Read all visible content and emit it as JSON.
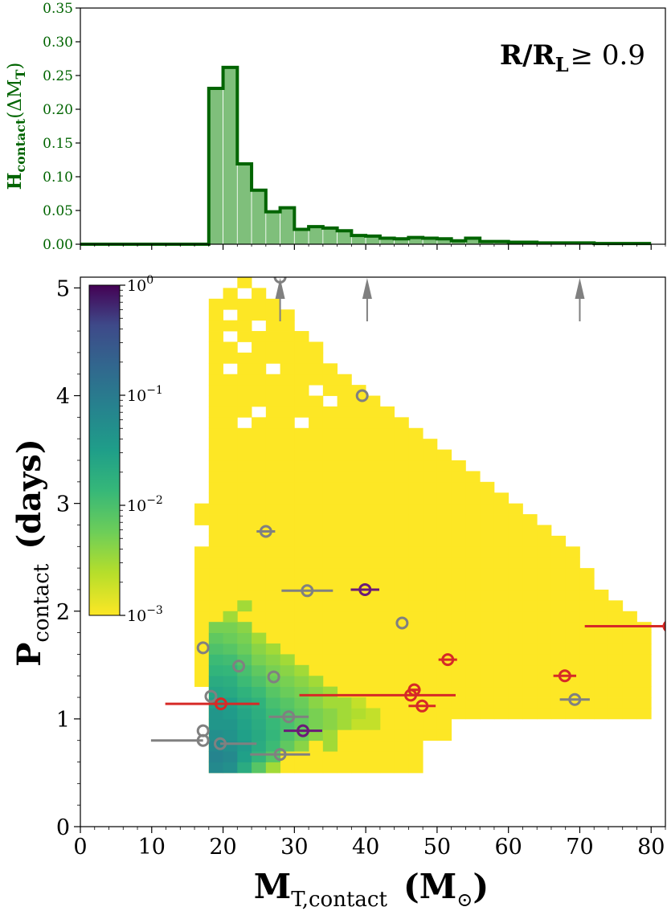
{
  "chart_data": [
    {
      "type": "bar",
      "panel": "histogram",
      "ylabel_main": "H",
      "ylabel_sub": "contact",
      "ylabel_tail": "(ΔM",
      "ylabel_tail_sub": "T",
      "ylabel_close": ")",
      "annotation_main": "R/R",
      "annotation_sub": "L",
      "annotation_tail": "≥ 0.9",
      "xlim": [
        0,
        82
      ],
      "ylim": [
        0,
        0.35
      ],
      "yticks": [
        "0.00",
        "0.05",
        "0.10",
        "0.15",
        "0.20",
        "0.25",
        "0.30",
        "0.35"
      ],
      "bin_width": 2,
      "bin_start": 0,
      "values": [
        0,
        0,
        0,
        0,
        0,
        0,
        0,
        0,
        0,
        0.231,
        0.262,
        0.119,
        0.08,
        0.048,
        0.054,
        0.022,
        0.026,
        0.024,
        0.02,
        0.013,
        0.012,
        0.009,
        0.008,
        0.01,
        0.009,
        0.008,
        0.005,
        0.009,
        0.004,
        0.004,
        0.003,
        0.003,
        0.002,
        0.002,
        0.002,
        0.002,
        0.001,
        0.001,
        0.001,
        0.001
      ],
      "fill_color": "#7fbf7b",
      "line_color": "#006400"
    },
    {
      "type": "heatmap",
      "panel": "main",
      "xlabel_main": "M",
      "xlabel_sub": "T,contact",
      "xlabel_unit": "(M",
      "xlabel_unit_sym": "⊙",
      "xlabel_close": ")",
      "ylabel_main": "P",
      "ylabel_sub": "contact",
      "ylabel_unit": "(days)",
      "xlim": [
        0,
        82
      ],
      "ylim": [
        0,
        5.1
      ],
      "xticks": [
        "0",
        "10",
        "20",
        "30",
        "40",
        "50",
        "60",
        "70",
        "80"
      ],
      "yticks": [
        "0",
        "1",
        "2",
        "3",
        "4",
        "5"
      ],
      "colorbar": {
        "scale": "log",
        "range": [
          0.001,
          1
        ],
        "ticks": [
          {
            "base": "10",
            "exp": "−3"
          },
          {
            "base": "10",
            "exp": "−2"
          },
          {
            "base": "10",
            "exp": "−1"
          },
          {
            "base": "10",
            "exp": "0"
          }
        ]
      },
      "bin_width_x": 2,
      "bin_height_y": 0.1,
      "yellow_region": {
        "bin_start_x": 18,
        "bin_end_x": 80,
        "p_min_start": 0.5,
        "p_max_by_mass": [
          [
            18,
            5.0
          ],
          [
            20,
            5.0
          ],
          [
            22,
            5.1
          ],
          [
            24,
            5.0
          ],
          [
            26,
            4.9
          ],
          [
            28,
            4.8
          ],
          [
            30,
            4.6
          ],
          [
            32,
            4.5
          ],
          [
            34,
            4.3
          ],
          [
            36,
            4.2
          ],
          [
            38,
            4.1
          ],
          [
            40,
            4.0
          ],
          [
            42,
            3.9
          ],
          [
            44,
            3.8
          ],
          [
            46,
            3.7
          ],
          [
            48,
            3.6
          ],
          [
            50,
            3.5
          ],
          [
            52,
            3.4
          ],
          [
            54,
            3.3
          ],
          [
            56,
            3.2
          ],
          [
            58,
            3.1
          ],
          [
            60,
            3.0
          ],
          [
            62,
            2.9
          ],
          [
            64,
            2.8
          ],
          [
            66,
            2.7
          ],
          [
            68,
            2.6
          ],
          [
            70,
            2.4
          ],
          [
            72,
            2.2
          ],
          [
            74,
            2.1
          ],
          [
            76,
            2.0
          ],
          [
            78,
            1.9
          ]
        ],
        "p_min_by_mass": [
          [
            44,
            0.5
          ],
          [
            48,
            0.8
          ],
          [
            52,
            1.0
          ],
          [
            60,
            1.0
          ]
        ]
      },
      "density_cells": [
        {
          "x": 18,
          "y": 0.5,
          "v": 0.06
        },
        {
          "x": 18,
          "y": 0.6,
          "v": 0.07
        },
        {
          "x": 18,
          "y": 0.7,
          "v": 0.06
        },
        {
          "x": 18,
          "y": 0.8,
          "v": 0.05
        },
        {
          "x": 18,
          "y": 0.9,
          "v": 0.04
        },
        {
          "x": 18,
          "y": 1.0,
          "v": 0.04
        },
        {
          "x": 18,
          "y": 1.1,
          "v": 0.03
        },
        {
          "x": 18,
          "y": 1.2,
          "v": 0.025
        },
        {
          "x": 18,
          "y": 1.3,
          "v": 0.02
        },
        {
          "x": 18,
          "y": 1.4,
          "v": 0.015
        },
        {
          "x": 18,
          "y": 1.5,
          "v": 0.012
        },
        {
          "x": 18,
          "y": 1.6,
          "v": 0.009
        },
        {
          "x": 18,
          "y": 1.7,
          "v": 0.007
        },
        {
          "x": 18,
          "y": 1.8,
          "v": 0.005
        },
        {
          "x": 20,
          "y": 0.5,
          "v": 0.05
        },
        {
          "x": 20,
          "y": 0.6,
          "v": 0.06
        },
        {
          "x": 20,
          "y": 0.7,
          "v": 0.05
        },
        {
          "x": 20,
          "y": 0.8,
          "v": 0.045
        },
        {
          "x": 20,
          "y": 0.9,
          "v": 0.04
        },
        {
          "x": 20,
          "y": 1.0,
          "v": 0.035
        },
        {
          "x": 20,
          "y": 1.1,
          "v": 0.03
        },
        {
          "x": 20,
          "y": 1.2,
          "v": 0.022
        },
        {
          "x": 20,
          "y": 1.3,
          "v": 0.018
        },
        {
          "x": 20,
          "y": 1.4,
          "v": 0.014
        },
        {
          "x": 20,
          "y": 1.5,
          "v": 0.011
        },
        {
          "x": 20,
          "y": 1.6,
          "v": 0.008
        },
        {
          "x": 20,
          "y": 1.7,
          "v": 0.006
        },
        {
          "x": 20,
          "y": 1.8,
          "v": 0.005
        },
        {
          "x": 20,
          "y": 1.9,
          "v": 0.003
        },
        {
          "x": 22,
          "y": 0.5,
          "v": 0.02
        },
        {
          "x": 22,
          "y": 0.6,
          "v": 0.03
        },
        {
          "x": 22,
          "y": 0.7,
          "v": 0.035
        },
        {
          "x": 22,
          "y": 0.8,
          "v": 0.03
        },
        {
          "x": 22,
          "y": 0.9,
          "v": 0.028
        },
        {
          "x": 22,
          "y": 1.0,
          "v": 0.025
        },
        {
          "x": 22,
          "y": 1.1,
          "v": 0.02
        },
        {
          "x": 22,
          "y": 1.2,
          "v": 0.016
        },
        {
          "x": 22,
          "y": 1.3,
          "v": 0.012
        },
        {
          "x": 22,
          "y": 1.4,
          "v": 0.01
        },
        {
          "x": 22,
          "y": 1.5,
          "v": 0.008
        },
        {
          "x": 22,
          "y": 1.6,
          "v": 0.006
        },
        {
          "x": 22,
          "y": 1.7,
          "v": 0.005
        },
        {
          "x": 22,
          "y": 1.8,
          "v": 0.004
        },
        {
          "x": 22,
          "y": 2.0,
          "v": 0.003
        },
        {
          "x": 24,
          "y": 0.5,
          "v": 0.008
        },
        {
          "x": 24,
          "y": 0.6,
          "v": 0.015
        },
        {
          "x": 24,
          "y": 0.7,
          "v": 0.02
        },
        {
          "x": 24,
          "y": 0.8,
          "v": 0.022
        },
        {
          "x": 24,
          "y": 0.9,
          "v": 0.02
        },
        {
          "x": 24,
          "y": 1.0,
          "v": 0.018
        },
        {
          "x": 24,
          "y": 1.1,
          "v": 0.016
        },
        {
          "x": 24,
          "y": 1.2,
          "v": 0.012
        },
        {
          "x": 24,
          "y": 1.3,
          "v": 0.009
        },
        {
          "x": 24,
          "y": 1.4,
          "v": 0.007
        },
        {
          "x": 24,
          "y": 1.5,
          "v": 0.005
        },
        {
          "x": 24,
          "y": 1.6,
          "v": 0.004
        },
        {
          "x": 24,
          "y": 1.7,
          "v": 0.003
        },
        {
          "x": 26,
          "y": 0.5,
          "v": 0.003
        },
        {
          "x": 26,
          "y": 0.6,
          "v": 0.008
        },
        {
          "x": 26,
          "y": 0.7,
          "v": 0.012
        },
        {
          "x": 26,
          "y": 0.8,
          "v": 0.014
        },
        {
          "x": 26,
          "y": 0.9,
          "v": 0.013
        },
        {
          "x": 26,
          "y": 1.0,
          "v": 0.012
        },
        {
          "x": 26,
          "y": 1.1,
          "v": 0.01
        },
        {
          "x": 26,
          "y": 1.2,
          "v": 0.008
        },
        {
          "x": 26,
          "y": 1.3,
          "v": 0.006
        },
        {
          "x": 26,
          "y": 1.4,
          "v": 0.005
        },
        {
          "x": 26,
          "y": 1.5,
          "v": 0.004
        },
        {
          "x": 26,
          "y": 1.6,
          "v": 0.003
        },
        {
          "x": 28,
          "y": 0.7,
          "v": 0.007
        },
        {
          "x": 28,
          "y": 0.8,
          "v": 0.009
        },
        {
          "x": 28,
          "y": 0.9,
          "v": 0.01
        },
        {
          "x": 28,
          "y": 1.0,
          "v": 0.009
        },
        {
          "x": 28,
          "y": 1.1,
          "v": 0.008
        },
        {
          "x": 28,
          "y": 1.2,
          "v": 0.006
        },
        {
          "x": 28,
          "y": 1.3,
          "v": 0.005
        },
        {
          "x": 28,
          "y": 1.4,
          "v": 0.004
        },
        {
          "x": 28,
          "y": 1.5,
          "v": 0.003
        },
        {
          "x": 30,
          "y": 0.7,
          "v": 0.004
        },
        {
          "x": 30,
          "y": 0.8,
          "v": 0.006
        },
        {
          "x": 30,
          "y": 0.9,
          "v": 0.007
        },
        {
          "x": 30,
          "y": 1.0,
          "v": 0.007
        },
        {
          "x": 30,
          "y": 1.1,
          "v": 0.006
        },
        {
          "x": 30,
          "y": 1.2,
          "v": 0.005
        },
        {
          "x": 30,
          "y": 1.3,
          "v": 0.004
        },
        {
          "x": 30,
          "y": 1.4,
          "v": 0.003
        },
        {
          "x": 32,
          "y": 0.8,
          "v": 0.004
        },
        {
          "x": 32,
          "y": 0.9,
          "v": 0.005
        },
        {
          "x": 32,
          "y": 1.0,
          "v": 0.005
        },
        {
          "x": 32,
          "y": 1.1,
          "v": 0.004
        },
        {
          "x": 32,
          "y": 1.2,
          "v": 0.004
        },
        {
          "x": 32,
          "y": 1.3,
          "v": 0.003
        },
        {
          "x": 34,
          "y": 0.7,
          "v": 0.003
        },
        {
          "x": 34,
          "y": 0.8,
          "v": 0.003
        },
        {
          "x": 34,
          "y": 0.9,
          "v": 0.004
        },
        {
          "x": 34,
          "y": 1.0,
          "v": 0.004
        },
        {
          "x": 34,
          "y": 1.1,
          "v": 0.003
        },
        {
          "x": 34,
          "y": 1.2,
          "v": 0.003
        },
        {
          "x": 36,
          "y": 0.9,
          "v": 0.003
        },
        {
          "x": 36,
          "y": 1.0,
          "v": 0.003
        },
        {
          "x": 36,
          "y": 1.1,
          "v": 0.003
        },
        {
          "x": 38,
          "y": 0.9,
          "v": 0.002
        },
        {
          "x": 38,
          "y": 1.0,
          "v": 0.0025
        },
        {
          "x": 38,
          "y": 1.1,
          "v": 0.002
        },
        {
          "x": 40,
          "y": 0.9,
          "v": 0.002
        },
        {
          "x": 40,
          "y": 1.0,
          "v": 0.002
        }
      ],
      "holes": [
        [
          18,
          4.9
        ],
        [
          20,
          4.7
        ],
        [
          22,
          4.9
        ],
        [
          20,
          4.5
        ],
        [
          24,
          4.6
        ],
        [
          22,
          4.4
        ],
        [
          26,
          4.2
        ],
        [
          20,
          4.2
        ],
        [
          34,
          3.9
        ],
        [
          22,
          3.7
        ],
        [
          32,
          4.0
        ],
        [
          24,
          3.8
        ],
        [
          30,
          3.7
        ],
        [
          16,
          3.0
        ],
        [
          16,
          2.6
        ]
      ],
      "arrows_x": [
        28,
        40.2,
        70
      ],
      "points": [
        {
          "x": 17.2,
          "y": 1.66,
          "xerr": [
            0,
            0
          ],
          "color": "gray"
        },
        {
          "x": 22.2,
          "y": 1.49,
          "xerr": [
            0,
            0
          ],
          "color": "gray"
        },
        {
          "x": 27.1,
          "y": 1.39,
          "xerr": [
            0,
            0
          ],
          "color": "gray"
        },
        {
          "x": 18.3,
          "y": 1.21,
          "xerr": [
            0,
            0
          ],
          "color": "gray"
        },
        {
          "x": 29.2,
          "y": 1.02,
          "xerr": [
            2.8,
            2.8
          ],
          "color": "gray"
        },
        {
          "x": 17.2,
          "y": 0.89,
          "xerr": [
            0,
            0
          ],
          "color": "gray"
        },
        {
          "x": 17.2,
          "y": 0.8,
          "xerr": [
            7.3,
            0
          ],
          "color": "gray"
        },
        {
          "x": 19.6,
          "y": 0.77,
          "xerr": [
            0,
            5.1
          ],
          "color": "gray"
        },
        {
          "x": 28.0,
          "y": 0.67,
          "xerr": [
            4.2,
            4.2
          ],
          "color": "gray"
        },
        {
          "x": 26.0,
          "y": 2.74,
          "xerr": [
            1.3,
            1.3
          ],
          "color": "gray"
        },
        {
          "x": 31.8,
          "y": 2.19,
          "xerr": [
            3.6,
            3.6
          ],
          "color": "gray"
        },
        {
          "x": 39.5,
          "y": 4.0,
          "xerr": [
            0,
            0
          ],
          "color": "gray"
        },
        {
          "x": 45.1,
          "y": 1.89,
          "xerr": [
            0,
            0
          ],
          "color": "gray"
        },
        {
          "x": 69.3,
          "y": 1.18,
          "xerr": [
            2.1,
            2.1
          ],
          "color": "gray"
        },
        {
          "x": 28.0,
          "y": 5.1,
          "xerr": [
            0,
            0
          ],
          "color": "gray"
        },
        {
          "x": 39.9,
          "y": 2.2,
          "xerr": [
            2.0,
            2.0
          ],
          "color": "purple"
        },
        {
          "x": 31.2,
          "y": 0.89,
          "xerr": [
            2.7,
            2.7
          ],
          "color": "purple"
        },
        {
          "x": 19.7,
          "y": 1.14,
          "xerr": [
            7.8,
            5.4
          ],
          "color": "red"
        },
        {
          "x": 46.3,
          "y": 1.22,
          "xerr": [
            15.6,
            6.3
          ],
          "color": "red"
        },
        {
          "x": 46.8,
          "y": 1.27,
          "xerr": [
            0.9,
            0.9
          ],
          "color": "red"
        },
        {
          "x": 47.9,
          "y": 1.12,
          "xerr": [
            1.9,
            1.9
          ],
          "color": "red"
        },
        {
          "x": 51.5,
          "y": 1.55,
          "xerr": [
            1.3,
            1.3
          ],
          "color": "red"
        },
        {
          "x": 67.9,
          "y": 1.4,
          "xerr": [
            1.6,
            1.6
          ],
          "color": "red"
        },
        {
          "x": 82.5,
          "y": 1.86,
          "xerr": [
            11.8,
            2
          ],
          "color": "red"
        }
      ],
      "colors": {
        "gray": "#808080",
        "purple": "#6b1a78",
        "red": "#d62a27",
        "yellow": "#fde725"
      }
    }
  ]
}
